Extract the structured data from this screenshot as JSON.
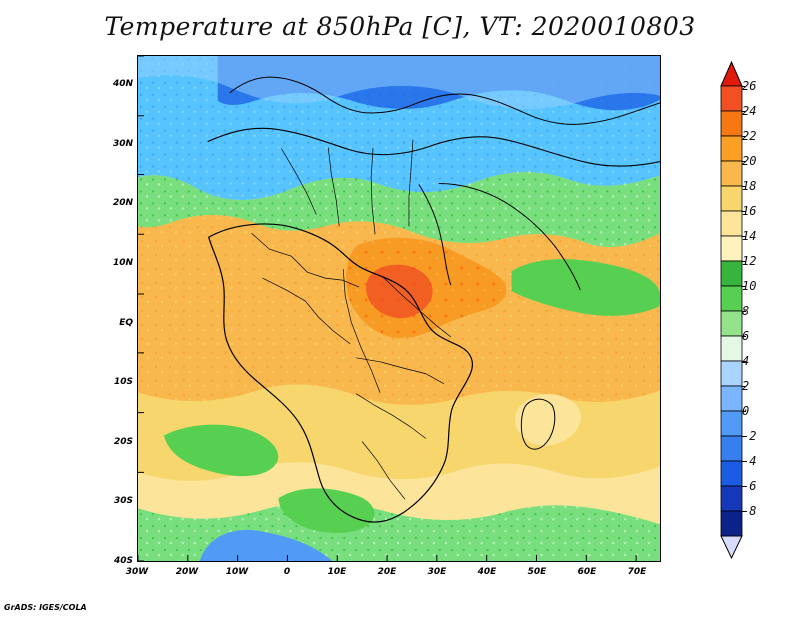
{
  "title": "Temperature at 850hPa [C], VT: 2020010803",
  "credit": "GrADS: IGES/COLA",
  "latitude_labels": [
    "40N",
    "30N",
    "20N",
    "10N",
    "EQ",
    "10S",
    "20S",
    "30S",
    "40S"
  ],
  "longitude_labels": [
    "30W",
    "20W",
    "10W",
    "0",
    "10E",
    "20E",
    "30E",
    "40E",
    "50E",
    "60E",
    "70E"
  ],
  "colorbar": {
    "labels": [
      "26",
      "24",
      "22",
      "20",
      "18",
      "16",
      "14",
      "12",
      "10",
      "8",
      "6",
      "4",
      "2",
      "0",
      "-2",
      "-4",
      "-6",
      "-8"
    ],
    "colors": [
      "#e11a0c",
      "#f05022",
      "#f67813",
      "#fb9f25",
      "#f8b84d",
      "#f8d66e",
      "#fce49a",
      "#fff2bd",
      "#36b43e",
      "#57d052",
      "#94e38b",
      "#e4f8e6",
      "#a9d4ff",
      "#7ab6ff",
      "#519af5",
      "#377eef",
      "#1b5ce4",
      "#1438b8",
      "#0b2288",
      "#d8dcff"
    ]
  },
  "map": {
    "region": "Africa and surrounding Atlantic and Indian oceans",
    "variable": "Temperature at 850hPa",
    "units": "C",
    "valid_time": "2020010803",
    "lon_range": [
      -30,
      75
    ],
    "lat_range": [
      -40,
      45
    ]
  }
}
